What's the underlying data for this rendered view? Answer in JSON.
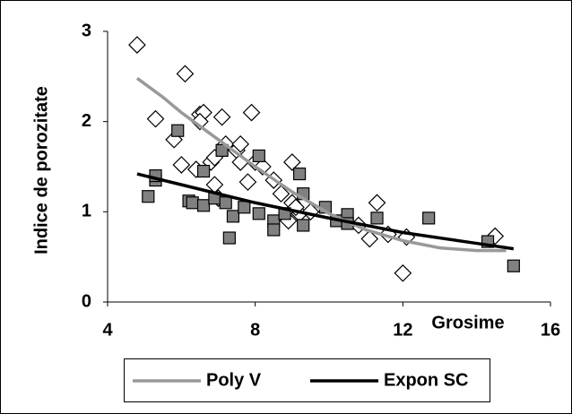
{
  "chart_data": {
    "type": "scatter",
    "x_label": "Grosime",
    "y_label": "Indice de porozitate",
    "xlim": [
      4,
      16
    ],
    "ylim": [
      0,
      3
    ],
    "xticks": [
      4,
      8,
      12,
      16
    ],
    "yticks": [
      0,
      1,
      2,
      3
    ],
    "grid": false,
    "legend": "bottom",
    "points": [
      {
        "marker": "diamond",
        "color": "#ffffff",
        "x": [
          4.8,
          5.3,
          5.8,
          6.0,
          6.1,
          6.5,
          6.6,
          6.5,
          6.4,
          6.8,
          6.9,
          7.1,
          7.2,
          7.5,
          7.6,
          7.6,
          7.8,
          7.9,
          8.0,
          8.2,
          8.5,
          8.7,
          9.0,
          9.0,
          9.2,
          8.9,
          9.5,
          10.4,
          10.8,
          11.1,
          11.3,
          11.6,
          12.0,
          12.1,
          14.5,
          6.9,
          7.0,
          9.1
        ],
        "y": [
          2.85,
          2.03,
          1.8,
          1.52,
          2.53,
          2.08,
          2.1,
          2.0,
          1.47,
          1.55,
          1.6,
          2.05,
          1.75,
          1.68,
          1.75,
          1.55,
          1.33,
          2.1,
          1.55,
          1.5,
          1.35,
          1.2,
          1.55,
          1.1,
          0.98,
          0.9,
          1.0,
          0.9,
          0.85,
          0.7,
          1.1,
          0.75,
          0.32,
          0.72,
          0.73,
          1.3,
          1.15,
          1.05
        ]
      },
      {
        "marker": "square",
        "color": "#808080",
        "x": [
          5.1,
          5.3,
          5.3,
          5.9,
          6.2,
          6.3,
          6.6,
          6.6,
          6.9,
          7.1,
          7.2,
          7.3,
          7.4,
          7.7,
          8.1,
          8.1,
          8.5,
          8.5,
          8.8,
          9.2,
          9.3,
          9.3,
          9.9,
          10.2,
          10.5,
          10.5,
          11.3,
          12.7,
          14.3,
          15.0
        ],
        "y": [
          1.17,
          1.35,
          1.4,
          1.9,
          1.12,
          1.1,
          1.45,
          1.07,
          1.15,
          1.68,
          1.1,
          0.71,
          0.95,
          1.05,
          1.62,
          0.98,
          0.9,
          0.8,
          0.98,
          1.42,
          1.2,
          0.85,
          1.05,
          0.9,
          0.97,
          0.87,
          0.93,
          0.93,
          0.67,
          0.4
        ]
      }
    ],
    "series": [
      {
        "name": "Poly V",
        "color": "#999999",
        "x": [
          4.8,
          5.5,
          6,
          7,
          8,
          9,
          10,
          11,
          12,
          13,
          14,
          14.8
        ],
        "values": [
          2.48,
          2.27,
          2.1,
          1.8,
          1.5,
          1.22,
          0.98,
          0.8,
          0.68,
          0.6,
          0.57,
          0.57
        ]
      },
      {
        "name": "Expon SC",
        "color": "#000000",
        "x": [
          4.8,
          6,
          8,
          10,
          12,
          14,
          15
        ],
        "values": [
          1.42,
          1.3,
          1.1,
          0.93,
          0.77,
          0.65,
          0.59
        ]
      }
    ]
  }
}
